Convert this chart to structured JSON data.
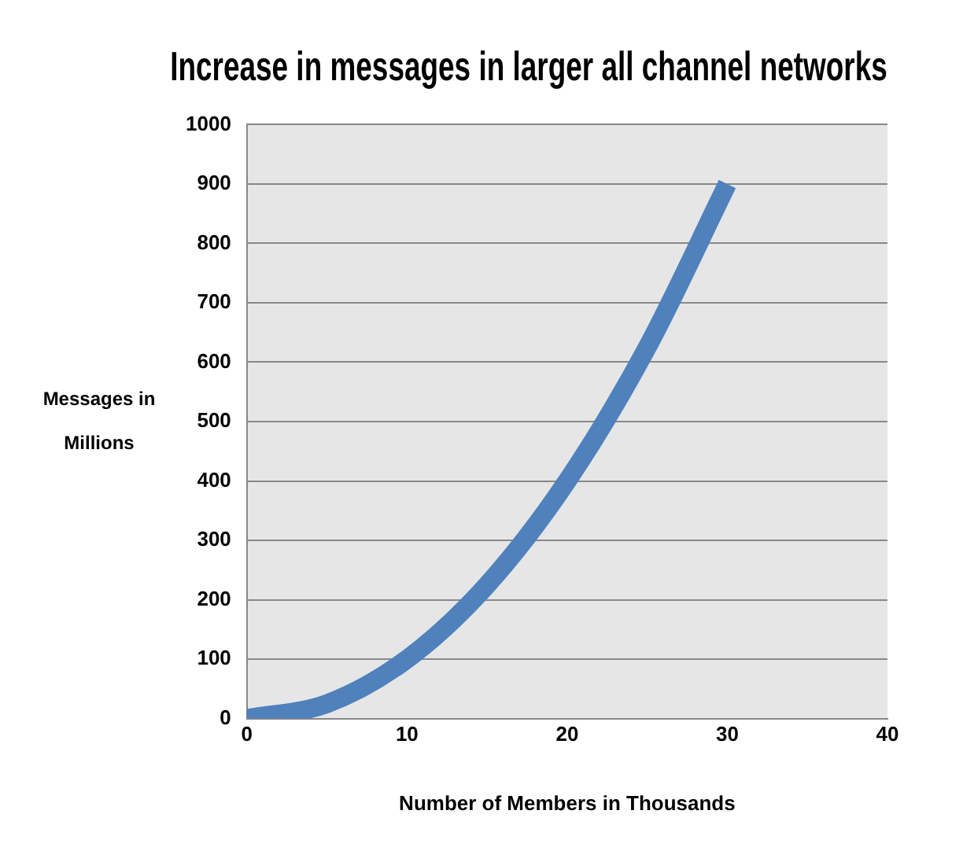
{
  "chart_data": {
    "type": "line",
    "title": "Increase in messages in larger all channel networks",
    "xlabel": "Number of Members in Thousands",
    "ylabel": "Messages in Millions",
    "x": [
      0,
      5,
      10,
      15,
      20,
      25,
      30
    ],
    "series": [
      {
        "color": "#4f81bd",
        "values": [
          0,
          25,
          100,
          225,
          400,
          625,
          900
        ]
      }
    ],
    "xlim": [
      0,
      40
    ],
    "xticks": [
      0,
      10,
      20,
      30,
      40
    ],
    "ylim": [
      0,
      1000
    ],
    "yticks": [
      0,
      100,
      200,
      300,
      400,
      500,
      600,
      700,
      800,
      900,
      1000
    ],
    "grid": "y",
    "legend": false,
    "marker": "none",
    "line_style": "solid"
  }
}
